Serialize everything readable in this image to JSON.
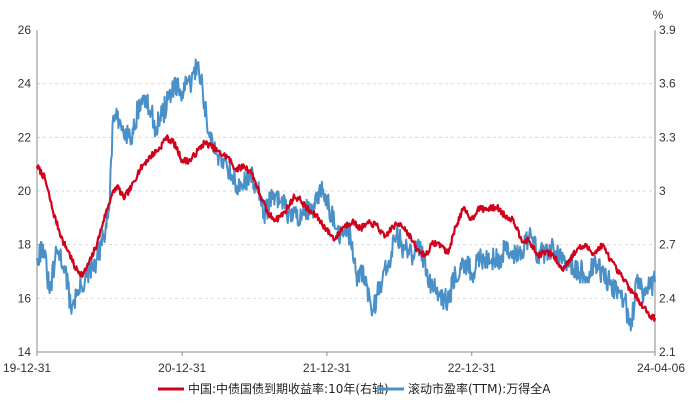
{
  "chart_data": {
    "type": "line",
    "title": "",
    "xlabel": "",
    "ylabel": "",
    "y2label": "%",
    "grid": true,
    "legend_position": "bottom",
    "x_ticks": [
      "19-12-31",
      "20-12-31",
      "21-12-31",
      "22-12-31",
      "24-04-06"
    ],
    "x_tick_dates": [
      "2019-12-31",
      "2020-12-31",
      "2021-12-31",
      "2022-12-31",
      "2024-04-06"
    ],
    "ylim": [
      14,
      26
    ],
    "y_ticks": [
      "26",
      "24",
      "22",
      "20",
      "18",
      "16",
      "14"
    ],
    "y2lim": [
      2.1,
      3.9
    ],
    "y2_ticks": [
      "3.9",
      "3.6",
      "3.3",
      "3",
      "2.7",
      "2.4",
      "2.1"
    ],
    "series": [
      {
        "name": "中国:中债国债到期收益率:10年(右轴)",
        "axis": "right",
        "color": "#d0021b",
        "points": [
          [
            "2019-12-31",
            3.14
          ],
          [
            "2020-01-20",
            3.07
          ],
          [
            "2020-02-10",
            2.88
          ],
          [
            "2020-03-05",
            2.72
          ],
          [
            "2020-03-20",
            2.66
          ],
          [
            "2020-04-05",
            2.57
          ],
          [
            "2020-04-25",
            2.53
          ],
          [
            "2020-05-15",
            2.62
          ],
          [
            "2020-05-31",
            2.71
          ],
          [
            "2020-06-15",
            2.83
          ],
          [
            "2020-07-05",
            2.97
          ],
          [
            "2020-07-20",
            3.03
          ],
          [
            "2020-08-05",
            2.96
          ],
          [
            "2020-08-25",
            3.02
          ],
          [
            "2020-09-10",
            3.1
          ],
          [
            "2020-09-25",
            3.15
          ],
          [
            "2020-10-15",
            3.2
          ],
          [
            "2020-11-05",
            3.24
          ],
          [
            "2020-11-20",
            3.3
          ],
          [
            "2020-12-10",
            3.27
          ],
          [
            "2020-12-31",
            3.17
          ],
          [
            "2021-01-20",
            3.17
          ],
          [
            "2021-02-10",
            3.23
          ],
          [
            "2021-02-25",
            3.27
          ],
          [
            "2021-03-15",
            3.25
          ],
          [
            "2021-04-05",
            3.21
          ],
          [
            "2021-04-25",
            3.19
          ],
          [
            "2021-05-15",
            3.12
          ],
          [
            "2021-06-05",
            3.14
          ],
          [
            "2021-06-25",
            3.1
          ],
          [
            "2021-07-15",
            2.98
          ],
          [
            "2021-08-05",
            2.87
          ],
          [
            "2021-08-25",
            2.84
          ],
          [
            "2021-09-15",
            2.88
          ],
          [
            "2021-10-10",
            2.97
          ],
          [
            "2021-10-25",
            2.95
          ],
          [
            "2021-11-15",
            2.89
          ],
          [
            "2021-12-05",
            2.86
          ],
          [
            "2021-12-31",
            2.78
          ],
          [
            "2022-01-20",
            2.73
          ],
          [
            "2022-02-10",
            2.8
          ],
          [
            "2022-03-05",
            2.83
          ],
          [
            "2022-03-25",
            2.79
          ],
          [
            "2022-04-15",
            2.82
          ],
          [
            "2022-05-05",
            2.81
          ],
          [
            "2022-05-25",
            2.74
          ],
          [
            "2022-06-15",
            2.8
          ],
          [
            "2022-07-05",
            2.82
          ],
          [
            "2022-07-25",
            2.76
          ],
          [
            "2022-08-15",
            2.67
          ],
          [
            "2022-09-05",
            2.64
          ],
          [
            "2022-09-25",
            2.71
          ],
          [
            "2022-10-15",
            2.7
          ],
          [
            "2022-11-01",
            2.65
          ],
          [
            "2022-11-20",
            2.8
          ],
          [
            "2022-12-10",
            2.9
          ],
          [
            "2022-12-31",
            2.84
          ],
          [
            "2023-01-15",
            2.9
          ],
          [
            "2023-02-10",
            2.9
          ],
          [
            "2023-03-05",
            2.91
          ],
          [
            "2023-03-25",
            2.86
          ],
          [
            "2023-04-15",
            2.84
          ],
          [
            "2023-05-05",
            2.73
          ],
          [
            "2023-05-25",
            2.72
          ],
          [
            "2023-06-15",
            2.64
          ],
          [
            "2023-07-05",
            2.66
          ],
          [
            "2023-07-25",
            2.64
          ],
          [
            "2023-08-15",
            2.56
          ],
          [
            "2023-09-05",
            2.62
          ],
          [
            "2023-09-25",
            2.68
          ],
          [
            "2023-10-15",
            2.69
          ],
          [
            "2023-11-05",
            2.65
          ],
          [
            "2023-11-25",
            2.7
          ],
          [
            "2023-12-15",
            2.62
          ],
          [
            "2023-12-31",
            2.56
          ],
          [
            "2024-01-20",
            2.5
          ],
          [
            "2024-02-10",
            2.43
          ],
          [
            "2024-02-25",
            2.39
          ],
          [
            "2024-03-10",
            2.35
          ],
          [
            "2024-03-25",
            2.3
          ],
          [
            "2024-04-06",
            2.29
          ]
        ]
      },
      {
        "name": "滚动市盈率(TTM):万得全A",
        "axis": "left",
        "color": "#4a90c8",
        "points": [
          [
            "2019-12-31",
            17.5
          ],
          [
            "2020-01-15",
            18.0
          ],
          [
            "2020-02-01",
            16.2
          ],
          [
            "2020-02-20",
            17.8
          ],
          [
            "2020-03-10",
            17.2
          ],
          [
            "2020-03-25",
            15.7
          ],
          [
            "2020-04-15",
            16.3
          ],
          [
            "2020-05-05",
            16.8
          ],
          [
            "2020-05-25",
            17.2
          ],
          [
            "2020-06-15",
            18.2
          ],
          [
            "2020-06-30",
            19.3
          ],
          [
            "2020-07-10",
            22.8
          ],
          [
            "2020-07-25",
            22.5
          ],
          [
            "2020-08-10",
            22.3
          ],
          [
            "2020-08-25",
            22.0
          ],
          [
            "2020-09-10",
            23.0
          ],
          [
            "2020-09-25",
            23.5
          ],
          [
            "2020-10-10",
            23.0
          ],
          [
            "2020-10-25",
            22.4
          ],
          [
            "2020-11-10",
            22.8
          ],
          [
            "2020-11-25",
            23.4
          ],
          [
            "2020-12-10",
            23.8
          ],
          [
            "2020-12-31",
            23.7
          ],
          [
            "2021-01-20",
            24.0
          ],
          [
            "2021-02-10",
            24.8
          ],
          [
            "2021-02-25",
            23.3
          ],
          [
            "2021-03-10",
            22.0
          ],
          [
            "2021-03-25",
            21.4
          ],
          [
            "2021-04-15",
            21.2
          ],
          [
            "2021-05-05",
            20.6
          ],
          [
            "2021-05-25",
            20.0
          ],
          [
            "2021-06-15",
            20.6
          ],
          [
            "2021-07-05",
            20.3
          ],
          [
            "2021-07-25",
            19.2
          ],
          [
            "2021-08-15",
            19.7
          ],
          [
            "2021-09-05",
            19.6
          ],
          [
            "2021-09-25",
            19.2
          ],
          [
            "2021-10-15",
            19.0
          ],
          [
            "2021-11-05",
            19.3
          ],
          [
            "2021-11-25",
            19.2
          ],
          [
            "2021-12-15",
            20.0
          ],
          [
            "2021-12-31",
            19.8
          ],
          [
            "2022-01-20",
            18.6
          ],
          [
            "2022-02-10",
            18.3
          ],
          [
            "2022-02-28",
            18.4
          ],
          [
            "2022-03-15",
            16.9
          ],
          [
            "2022-04-05",
            16.8
          ],
          [
            "2022-04-25",
            15.5
          ],
          [
            "2022-05-15",
            16.6
          ],
          [
            "2022-06-05",
            17.4
          ],
          [
            "2022-06-25",
            18.4
          ],
          [
            "2022-07-15",
            17.8
          ],
          [
            "2022-08-05",
            17.6
          ],
          [
            "2022-08-25",
            17.9
          ],
          [
            "2022-09-15",
            16.7
          ],
          [
            "2022-10-05",
            16.4
          ],
          [
            "2022-10-31",
            15.8
          ],
          [
            "2022-11-20",
            16.9
          ],
          [
            "2022-12-10",
            17.4
          ],
          [
            "2022-12-31",
            16.9
          ],
          [
            "2023-01-20",
            17.4
          ],
          [
            "2023-02-10",
            17.6
          ],
          [
            "2023-03-05",
            17.4
          ],
          [
            "2023-03-25",
            17.8
          ],
          [
            "2023-04-15",
            17.6
          ],
          [
            "2023-05-05",
            17.8
          ],
          [
            "2023-05-25",
            18.4
          ],
          [
            "2023-06-15",
            17.7
          ],
          [
            "2023-07-05",
            17.7
          ],
          [
            "2023-07-25",
            17.9
          ],
          [
            "2023-08-15",
            17.3
          ],
          [
            "2023-09-05",
            17.2
          ],
          [
            "2023-09-25",
            17.1
          ],
          [
            "2023-10-15",
            16.8
          ],
          [
            "2023-11-05",
            17.2
          ],
          [
            "2023-11-25",
            17.0
          ],
          [
            "2023-12-15",
            16.5
          ],
          [
            "2023-12-31",
            16.4
          ],
          [
            "2024-01-20",
            16.0
          ],
          [
            "2024-02-05",
            14.8
          ],
          [
            "2024-02-20",
            16.6
          ],
          [
            "2024-03-05",
            16.2
          ],
          [
            "2024-03-20",
            16.5
          ],
          [
            "2024-04-06",
            16.6
          ]
        ]
      }
    ]
  }
}
